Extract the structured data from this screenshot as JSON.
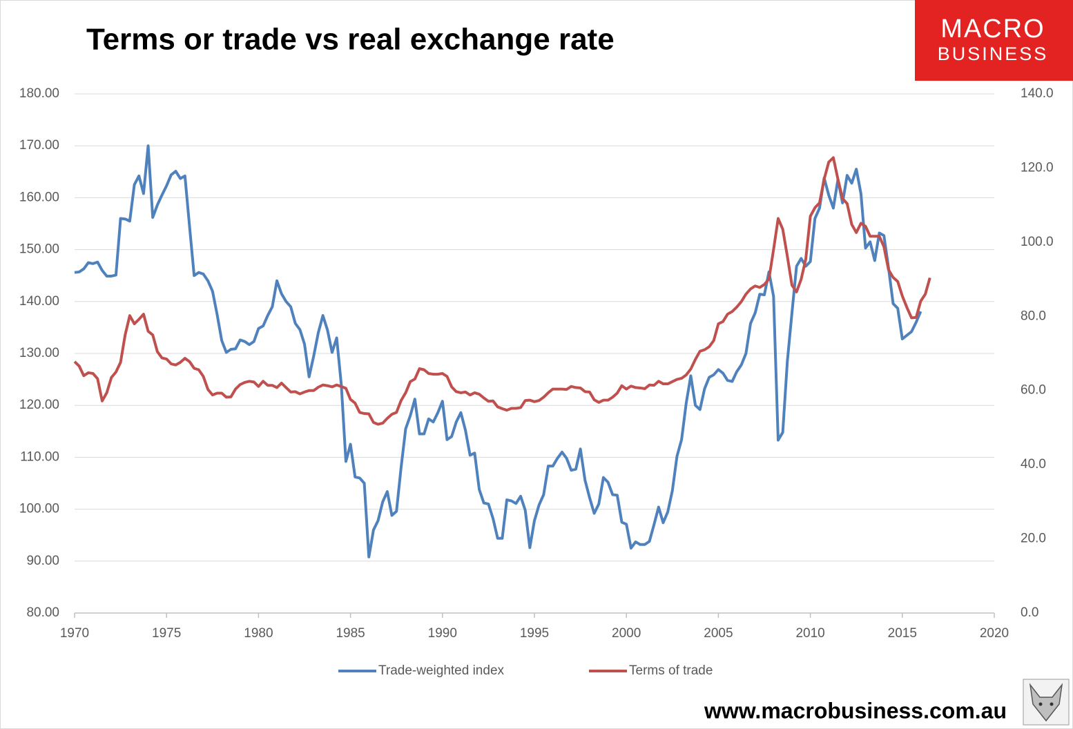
{
  "logo": {
    "line1": "MACRO",
    "line2": "BUSINESS"
  },
  "footer": "www.macrobusiness.com.au",
  "chart_data": {
    "type": "line",
    "title": "Terms or trade vs real exchange rate",
    "xlim": [
      1970,
      2020
    ],
    "xticks": [
      1970,
      1975,
      1980,
      1985,
      1990,
      1995,
      2000,
      2005,
      2010,
      2015,
      2020
    ],
    "ylim": [
      80,
      180
    ],
    "yticks": [
      {
        "value": 80,
        "label": "80.00"
      },
      {
        "value": 90,
        "label": "90.00"
      },
      {
        "value": 100,
        "label": "100.00"
      },
      {
        "value": 110,
        "label": "110.00"
      },
      {
        "value": 120,
        "label": "120.00"
      },
      {
        "value": 130,
        "label": "130.00"
      },
      {
        "value": 140,
        "label": "140.00"
      },
      {
        "value": 150,
        "label": "150.00"
      },
      {
        "value": 160,
        "label": "160.00"
      },
      {
        "value": 170,
        "label": "170.00"
      },
      {
        "value": 180,
        "label": "180.00"
      }
    ],
    "y2lim": [
      0,
      140
    ],
    "y2ticks": [
      {
        "value": 0,
        "label": "0.0"
      },
      {
        "value": 20,
        "label": "20.0"
      },
      {
        "value": 40,
        "label": "40.0"
      },
      {
        "value": 60,
        "label": "60.0"
      },
      {
        "value": 80,
        "label": "80.0"
      },
      {
        "value": 100,
        "label": "100.0"
      },
      {
        "value": 120,
        "label": "120.0"
      },
      {
        "value": 140,
        "label": "140.0"
      }
    ],
    "grid": true,
    "legend": "bottom",
    "x": [
      1970,
      1970.25,
      1970.5,
      1970.75,
      1971,
      1971.25,
      1971.5,
      1971.75,
      1972,
      1972.25,
      1972.5,
      1972.75,
      1973,
      1973.25,
      1973.5,
      1973.75,
      1974,
      1974.25,
      1974.5,
      1974.75,
      1975,
      1975.25,
      1975.5,
      1975.75,
      1976,
      1976.25,
      1976.5,
      1976.75,
      1977,
      1977.25,
      1977.5,
      1977.75,
      1978,
      1978.25,
      1978.5,
      1978.75,
      1979,
      1979.25,
      1979.5,
      1979.75,
      1980,
      1980.25,
      1980.5,
      1980.75,
      1981,
      1981.25,
      1981.5,
      1981.75,
      1982,
      1982.25,
      1982.5,
      1982.75,
      1983,
      1983.25,
      1983.5,
      1983.75,
      1984,
      1984.25,
      1984.5,
      1984.75,
      1985,
      1985.25,
      1985.5,
      1985.75,
      1986,
      1986.25,
      1986.5,
      1986.75,
      1987,
      1987.25,
      1987.5,
      1987.75,
      1988,
      1988.25,
      1988.5,
      1988.75,
      1989,
      1989.25,
      1989.5,
      1989.75,
      1990,
      1990.25,
      1990.5,
      1990.75,
      1991,
      1991.25,
      1991.5,
      1991.75,
      1992,
      1992.25,
      1992.5,
      1992.75,
      1993,
      1993.25,
      1993.5,
      1993.75,
      1994,
      1994.25,
      1994.5,
      1994.75,
      1995,
      1995.25,
      1995.5,
      1995.75,
      1996,
      1996.25,
      1996.5,
      1996.75,
      1997,
      1997.25,
      1997.5,
      1997.75,
      1998,
      1998.25,
      1998.5,
      1998.75,
      1999,
      1999.25,
      1999.5,
      1999.75,
      2000,
      2000.25,
      2000.5,
      2000.75,
      2001,
      2001.25,
      2001.5,
      2001.75,
      2002,
      2002.25,
      2002.5,
      2002.75,
      2003,
      2003.25,
      2003.5,
      2003.75,
      2004,
      2004.25,
      2004.5,
      2004.75,
      2005,
      2005.25,
      2005.5,
      2005.75,
      2006,
      2006.25,
      2006.5,
      2006.75,
      2007,
      2007.25,
      2007.5,
      2007.75,
      2008,
      2008.25,
      2008.5,
      2008.75,
      2009,
      2009.25,
      2009.5,
      2009.75,
      2010,
      2010.25,
      2010.5,
      2010.75,
      2011,
      2011.25,
      2011.5,
      2011.75,
      2012,
      2012.25,
      2012.5,
      2012.75,
      2013,
      2013.25,
      2013.5,
      2013.75,
      2014,
      2014.25,
      2014.5,
      2014.75,
      2015,
      2015.25,
      2015.5,
      2015.75,
      2016,
      2016.25,
      2016.5
    ],
    "series": [
      {
        "name": "Trade-weighted index",
        "color": "#4f81bd",
        "axis": "y",
        "values": [
          145.6,
          145.7,
          146.3,
          147.5,
          147.3,
          147.6,
          146,
          144.9,
          144.9,
          145.1,
          156,
          155.9,
          155.5,
          162.5,
          164.2,
          160.8,
          170,
          156.2,
          158.6,
          160.5,
          162.3,
          164.4,
          165.1,
          163.7,
          164.2,
          154.5,
          145,
          145.6,
          145.3,
          144,
          142,
          137.5,
          132.5,
          130.2,
          130.8,
          130.9,
          132.6,
          132.3,
          131.7,
          132.3,
          134.8,
          135.3,
          137.3,
          139,
          144,
          141.5,
          140,
          139,
          135.8,
          134.6,
          131.8,
          125.5,
          129.5,
          134,
          137.3,
          134.5,
          130.2,
          133,
          124,
          109.2,
          112.5,
          106.2,
          106,
          105,
          90.8,
          96,
          97.8,
          101.4,
          103.4,
          98.8,
          99.6,
          108,
          115.5,
          118,
          121.2,
          114.5,
          114.5,
          117.4,
          116.8,
          118.6,
          120.8,
          113.4,
          114,
          116.8,
          118.6,
          115.2,
          110.4,
          110.8,
          103.8,
          101.2,
          101,
          98.2,
          94.4,
          94.4,
          101.8,
          101.6,
          101.1,
          102.5,
          99.8,
          92.6,
          97.8,
          100.8,
          102.8,
          108.3,
          108.3,
          109.8,
          111,
          109.8,
          107.5,
          107.7,
          111.6,
          105.6,
          102.2,
          99.2,
          101,
          106.1,
          105.2,
          102.8,
          102.7,
          97.5,
          97.1,
          92.5,
          93.7,
          93.2,
          93.2,
          93.8,
          97,
          100.4,
          97.4,
          99.5,
          103.6,
          110.2,
          113.4,
          120.4,
          125.7,
          120,
          119.2,
          123.2,
          125.4,
          125.9,
          126.9,
          126.2,
          124.8,
          124.6,
          126.5,
          127.8,
          130,
          135.8,
          137.8,
          141.4,
          141.3,
          145.7,
          141,
          113.3,
          114.8,
          128.5,
          137.8,
          146.8,
          148.3,
          146.8,
          147.7,
          156,
          158,
          163.8,
          160.5,
          158,
          163.5,
          159,
          164.3,
          162.8,
          165.5,
          160.8,
          150.3,
          151.5,
          147.9,
          153.2,
          152.7,
          146.5,
          139.6,
          138.7,
          132.8,
          133.5,
          134.2,
          136,
          138.1,
          null,
          null
        ]
      },
      {
        "name": "Terms of trade",
        "color": "#c0504d",
        "axis": "y2",
        "values": [
          67.8,
          66.6,
          64,
          64.8,
          64.6,
          63.2,
          57.2,
          59.4,
          63.5,
          65,
          67.6,
          75,
          80.2,
          78,
          79.2,
          80.6,
          76,
          75,
          70.5,
          68.8,
          68.5,
          67.2,
          66.9,
          67.6,
          68.7,
          67.8,
          66,
          65.6,
          63.8,
          60.3,
          58.8,
          59.3,
          59.3,
          58.2,
          58.3,
          60.4,
          61.6,
          62.2,
          62.5,
          62.3,
          61.1,
          62.5,
          61.4,
          61.4,
          60.8,
          62,
          60.8,
          59.6,
          59.7,
          59.1,
          59.6,
          60,
          60,
          60.9,
          61.5,
          61.3,
          61,
          61.5,
          61.1,
          60.6,
          57.6,
          56.6,
          54.1,
          53.8,
          53.7,
          51.4,
          50.9,
          51.2,
          52.5,
          53.6,
          54.1,
          57.3,
          59.4,
          62.4,
          63.1,
          65.9,
          65.6,
          64.6,
          64.4,
          64.4,
          64.6,
          63.8,
          61,
          59.7,
          59.4,
          59.6,
          58.8,
          59.4,
          59,
          58,
          57.1,
          57.2,
          55.6,
          55.1,
          54.7,
          55.2,
          55.2,
          55.4,
          57.3,
          57.4,
          57,
          57.3,
          58.2,
          59.4,
          60.4,
          60.4,
          60.4,
          60.3,
          61.1,
          60.8,
          60.7,
          59.7,
          59.6,
          57.5,
          56.8,
          57.4,
          57.4,
          58.2,
          59.3,
          61.3,
          60.4,
          61.2,
          60.8,
          60.7,
          60.5,
          61.5,
          61.4,
          62.5,
          61.8,
          61.8,
          62.4,
          63,
          63.3,
          64.2,
          65.8,
          68.4,
          70.6,
          71,
          71.8,
          73.5,
          78,
          78.6,
          80.6,
          81.3,
          82.5,
          84,
          86,
          87.4,
          88.2,
          87.8,
          88.6,
          90.1,
          98,
          106.4,
          103.5,
          96.2,
          88.4,
          86.6,
          90,
          95.4,
          107,
          109.3,
          110.6,
          117,
          121.6,
          122.8,
          117,
          111.8,
          110.4,
          104.8,
          102.6,
          105.1,
          104.3,
          101.6,
          101.6,
          101.6,
          98.8,
          92.6,
          90.5,
          89.4,
          85.5,
          82.4,
          79.6,
          79.7,
          84.1,
          86,
          90.4
        ]
      }
    ]
  }
}
